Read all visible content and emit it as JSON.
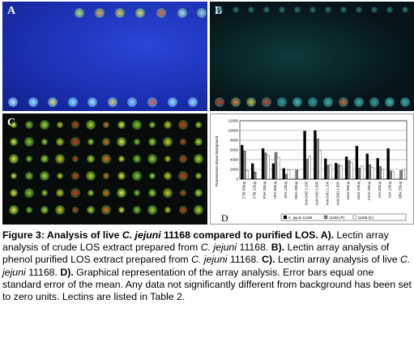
{
  "panels": {
    "a": {
      "letter": "A"
    },
    "b": {
      "letter": "B"
    },
    "c": {
      "letter": "C"
    },
    "d": {
      "letter": "D"
    }
  },
  "chart_data": {
    "type": "bar",
    "ylabel": "Fluorescence above background",
    "ylim": [
      0,
      12000
    ],
    "yticks": [
      0,
      2000,
      4000,
      6000,
      8000,
      10000,
      12000
    ],
    "tick_labels_x": [
      "CTB 500ug",
      "CTB 125ug",
      "PNA 250ug",
      "UFA 500ug",
      "UFA 125ug",
      "MAA 230ug",
      "Anti-GM2 1:100",
      "Anti-GM2 1:000",
      "Anti-GM1 1:100",
      "Anti-GM1 1:000",
      "Jacin 500ug",
      "Jacin 125ug",
      "ConA 250ug",
      "VAA 500ug",
      "VAA 125ug",
      "DBA 250ug"
    ],
    "categories_count": 16,
    "series": [
      {
        "name": "C. jejuni 11168",
        "color": "#000000",
        "values": [
          7000,
          3200,
          6300,
          3200,
          2200,
          0,
          9900,
          10000,
          4200,
          3300,
          4600,
          6800,
          5200,
          4300,
          6300,
          0
        ]
      },
      {
        "name": "11168 (P)",
        "color": "#7f7f7f",
        "values": [
          5800,
          1500,
          5400,
          5500,
          1000,
          1900,
          4100,
          8300,
          2900,
          3000,
          3800,
          2300,
          3000,
          2600,
          1700,
          1800
        ]
      },
      {
        "name": "11168 (C)",
        "color": "#ffffff",
        "values": [
          1800,
          0,
          4900,
          4500,
          1900,
          0,
          4800,
          5900,
          3000,
          2800,
          3400,
          2800,
          2400,
          2000,
          1600,
          2000
        ]
      }
    ],
    "legend": "bottom"
  },
  "caption": {
    "figure_label": "Figure 3: Analysis of live ",
    "title_species": "C. jejuni",
    "title_rest": " 11168 compared to purified LOS. A).",
    "s1": " Lectin array analysis of crude LOS extract prepared from ",
    "s1_species": "C. jejuni",
    "s1_end": " 11168.",
    "b_label": "B).",
    "s2": " Lectin array analysis of phenol purified LOS extract prepared from ",
    "s2_species": "C. jejuni",
    "s2_end": " 11168.",
    "c_label": "C).",
    "s3": " Lectin array analysis of live ",
    "s3_species": "C. jejuni",
    "s3_end": " 11168.",
    "d_label": "D).",
    "s4": " Graphical representation of the array analysis. Error bars equal one standard error of the mean. Any data not significantly different from background has been set to zero units. Lectins are listed in Table 2."
  }
}
